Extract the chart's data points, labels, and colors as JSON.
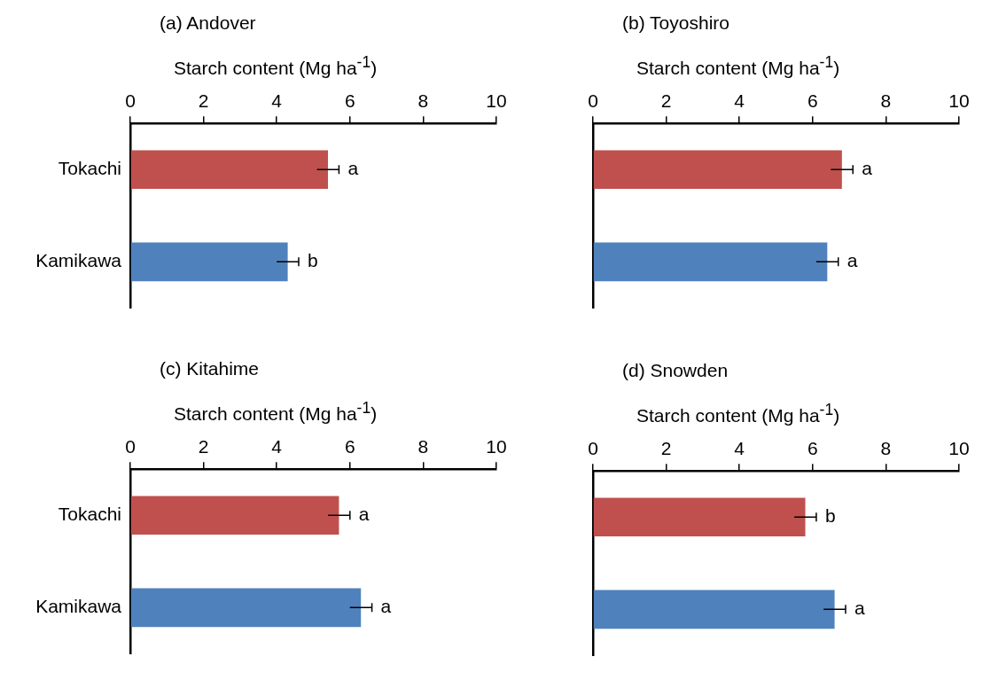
{
  "chart_data": [
    {
      "type": "bar",
      "orientation": "horizontal",
      "title": "(a) Andover",
      "xlabel": "Starch content  (Mg ha$^{-1}$)",
      "categories": [
        "Tokachi",
        "Kamikawa"
      ],
      "values": [
        5.4,
        4.3
      ],
      "colors": [
        "#c0504d",
        "#4f81bd"
      ],
      "errors": [
        0.3,
        0.3
      ],
      "value_labels": [
        "a",
        "b"
      ],
      "xlim": [
        0,
        10
      ],
      "xticks": [
        0,
        2,
        4,
        6,
        8,
        10
      ],
      "grid": false,
      "legend": false
    },
    {
      "type": "bar",
      "orientation": "horizontal",
      "title": "(b) Toyoshiro",
      "xlabel": "Starch content  (Mg ha$^{-1}$)",
      "categories": [
        null,
        null
      ],
      "values": [
        6.8,
        6.4
      ],
      "colors": [
        "#c0504d",
        "#4f81bd"
      ],
      "errors": [
        0.3,
        0.3
      ],
      "value_labels": [
        "a",
        "a"
      ],
      "xlim": [
        0,
        10
      ],
      "xticks": [
        0,
        2,
        4,
        6,
        8,
        10
      ],
      "grid": false,
      "legend": false
    },
    {
      "type": "bar",
      "orientation": "horizontal",
      "title": "(c) Kitahime",
      "xlabel": "Starch content  (Mg ha$^{-1}$)",
      "categories": [
        "Tokachi",
        "Kamikawa"
      ],
      "values": [
        5.7,
        6.3
      ],
      "colors": [
        "#c0504d",
        "#4f81bd"
      ],
      "errors": [
        0.3,
        0.3
      ],
      "value_labels": [
        "a",
        "a"
      ],
      "xlim": [
        0,
        10
      ],
      "xticks": [
        0,
        2,
        4,
        6,
        8,
        10
      ],
      "grid": false,
      "legend": false
    },
    {
      "type": "bar",
      "orientation": "horizontal",
      "title": "(d) Snowden",
      "xlabel": "Starch content  (Mg ha$^{-1}$)",
      "categories": [
        null,
        null
      ],
      "values": [
        5.8,
        6.6
      ],
      "colors": [
        "#c0504d",
        "#4f81bd"
      ],
      "errors": [
        0.3,
        0.3
      ],
      "value_labels": [
        "b",
        "a"
      ],
      "xlim": [
        0,
        10
      ],
      "xticks": [
        0,
        2,
        4,
        6,
        8,
        10
      ],
      "grid": false,
      "legend": false
    }
  ]
}
